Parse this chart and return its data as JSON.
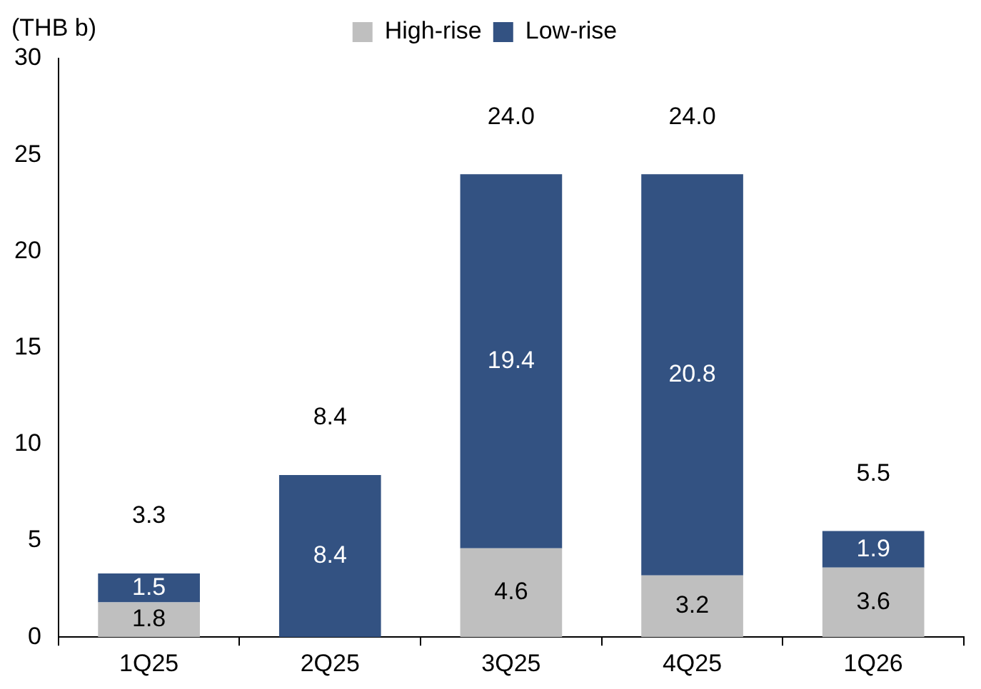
{
  "chart_data": {
    "type": "bar",
    "stacked": true,
    "ylabel": "(THB b)",
    "categories": [
      "1Q25",
      "2Q25",
      "3Q25",
      "4Q25",
      "1Q26"
    ],
    "series": [
      {
        "name": "High-rise",
        "color": "#bfbfbf",
        "values": [
          1.8,
          null,
          4.6,
          3.2,
          3.6
        ]
      },
      {
        "name": "Low-rise",
        "color": "#335282",
        "values": [
          1.5,
          8.4,
          19.4,
          20.8,
          1.9
        ]
      }
    ],
    "totals": [
      "3.3",
      "8.4",
      "24.0",
      "24.0",
      "5.5"
    ],
    "data_labels": true,
    "legend": "top",
    "ylim": [
      0,
      30
    ],
    "yticks": [
      0,
      5,
      10,
      15,
      20,
      25,
      30
    ]
  }
}
